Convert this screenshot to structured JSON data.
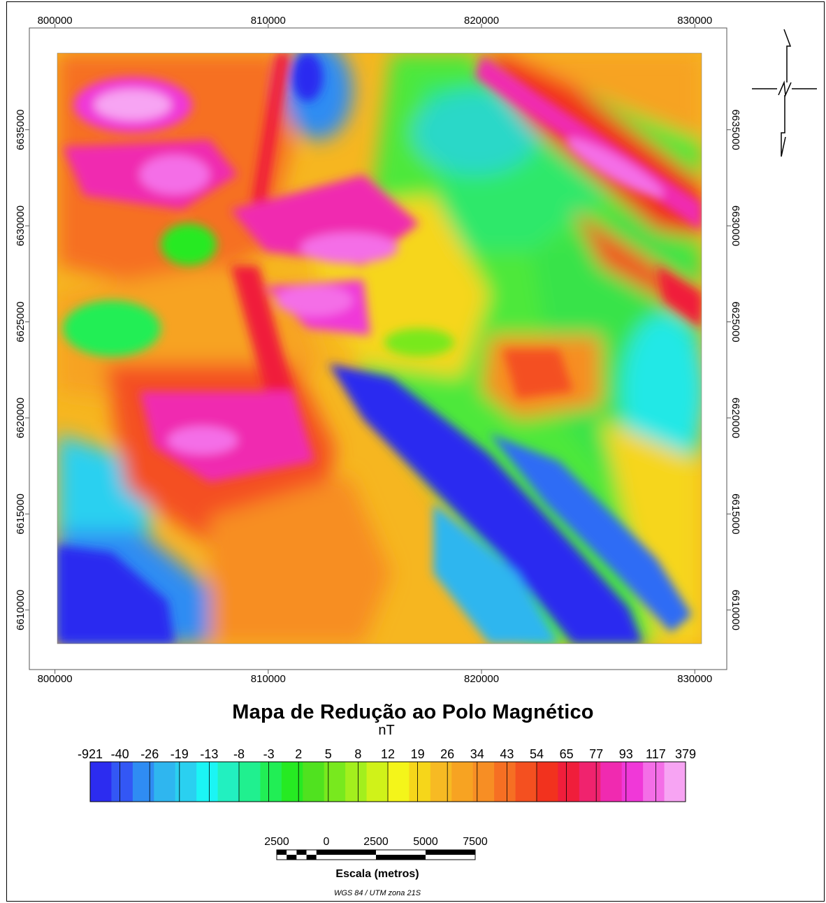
{
  "map": {
    "title": "Mapa de Redução ao Polo Magnético",
    "unit": "nT",
    "crs": "WGS 84 / UTM zona 21S",
    "scale_title": "Escala (metros)",
    "x_ticks": [
      {
        "value": 800000,
        "label": "800000"
      },
      {
        "value": 810000,
        "label": "810000"
      },
      {
        "value": 820000,
        "label": "820000"
      },
      {
        "value": 830000,
        "label": "830000"
      }
    ],
    "y_ticks": [
      {
        "value": 6635000,
        "label": "6635000"
      },
      {
        "value": 6630000,
        "label": "6630000"
      },
      {
        "value": 6625000,
        "label": "6625000"
      },
      {
        "value": 6620000,
        "label": "6620000"
      },
      {
        "value": 6615000,
        "label": "6615000"
      },
      {
        "value": 6610000,
        "label": "6610000"
      }
    ],
    "x_range": [
      798800,
      831500
    ],
    "y_range": [
      6606900,
      6640300
    ]
  },
  "legend": {
    "labels": [
      "-921",
      "-40",
      "-26",
      "-19",
      "-13",
      "-8",
      "-3",
      "2",
      "5",
      "8",
      "12",
      "19",
      "26",
      "34",
      "43",
      "54",
      "65",
      "77",
      "93",
      "117",
      "379"
    ],
    "colors": [
      "#2c2cf0",
      "#3357f5",
      "#2f8cf3",
      "#2fb6ef",
      "#2ad0f0",
      "#1bf5f5",
      "#22f0c0",
      "#20f08f",
      "#21ee55",
      "#26ea22",
      "#50e21f",
      "#78e91e",
      "#a3ef1d",
      "#d0f219",
      "#f4f51a",
      "#f6d61a",
      "#f7ba23",
      "#f7a322",
      "#f78e24",
      "#f66f23",
      "#f45020",
      "#f2321e",
      "#f01e3b",
      "#f0236e",
      "#f02ab0",
      "#f038d8",
      "#f46ee7",
      "#f7a4f3"
    ]
  },
  "scale_bar": {
    "labels": [
      "2500",
      "0",
      "2500",
      "5000",
      "7500"
    ]
  }
}
